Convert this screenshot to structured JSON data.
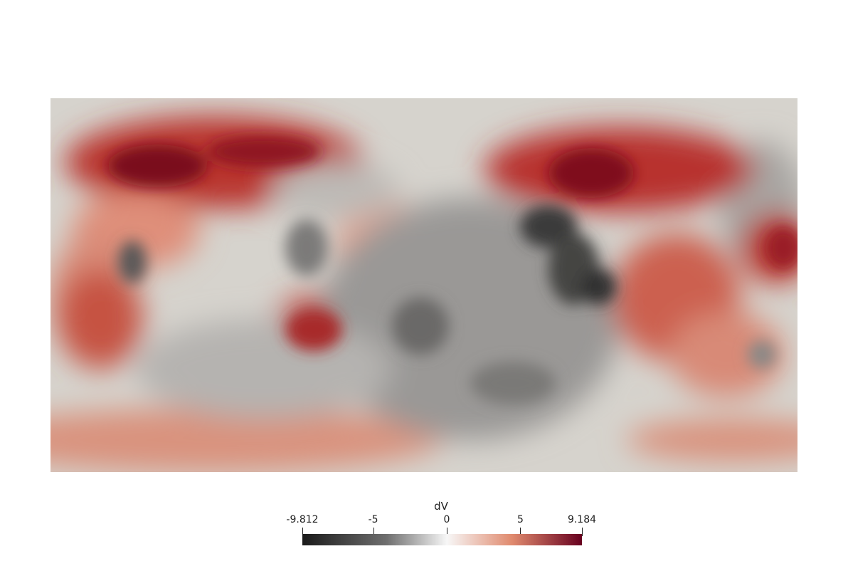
{
  "colorbar": {
    "title": "dV",
    "min": -9.812,
    "max": 9.184,
    "ticks": [
      {
        "value": -9.812,
        "label": "-9.812"
      },
      {
        "value": -5,
        "label": "-5"
      },
      {
        "value": 0,
        "label": "0"
      },
      {
        "value": 5,
        "label": "5"
      },
      {
        "value": 9.184,
        "label": "9.184"
      }
    ],
    "colors": {
      "low": "#1a1a1a",
      "mid": "#f7f7f7",
      "high": "#67001f",
      "midhigh": "#e08a6e"
    }
  },
  "map": {
    "projection": "equirectangular",
    "field": "dV",
    "neutral_color": "#d6d3cd"
  }
}
